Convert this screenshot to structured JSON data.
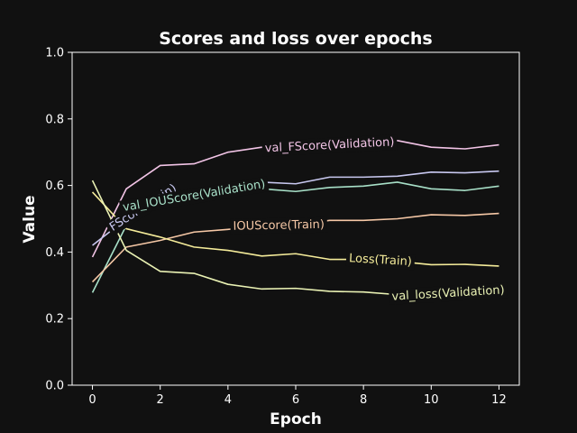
{
  "chart_data": {
    "type": "line",
    "title": "Scores and loss over epochs",
    "xlabel": "Epoch",
    "ylabel": "Value",
    "xlim": [
      -0.6,
      12.6
    ],
    "ylim": [
      0.0,
      1.0
    ],
    "x": [
      0,
      1,
      2,
      3,
      4,
      5,
      6,
      7,
      8,
      9,
      10,
      11,
      12
    ],
    "xticks": [
      0,
      2,
      4,
      6,
      8,
      10,
      12
    ],
    "yticks": [
      0.0,
      0.2,
      0.4,
      0.6,
      0.8,
      1.0
    ],
    "ytick_labels": [
      "0.0",
      "0.2",
      "0.4",
      "0.6",
      "0.8",
      "1.0"
    ],
    "series": [
      {
        "name": "val_FScore(Validation)",
        "color": "#f2c4e6",
        "values": [
          0.385,
          0.59,
          0.66,
          0.665,
          0.7,
          0.715,
          0.71,
          0.72,
          0.725,
          0.735,
          0.715,
          0.71,
          0.722
        ],
        "label_at": 7.0
      },
      {
        "name": "FScore(Train)",
        "color": "#c8c8f0",
        "values": [
          0.42,
          0.5,
          0.565,
          0.585,
          0.6,
          0.61,
          0.605,
          0.625,
          0.625,
          0.628,
          0.64,
          0.638,
          0.643
        ],
        "label_at": 1.5
      },
      {
        "name": "val_IOUScore(Validation)",
        "color": "#a8e0c8",
        "values": [
          0.278,
          0.48,
          0.54,
          0.568,
          0.585,
          0.59,
          0.582,
          0.594,
          0.598,
          0.61,
          0.59,
          0.585,
          0.598
        ],
        "label_at": 3.0
      },
      {
        "name": "IOUScore(Train)",
        "color": "#f6c8a6",
        "values": [
          0.31,
          0.415,
          0.435,
          0.46,
          0.468,
          0.478,
          0.48,
          0.495,
          0.495,
          0.5,
          0.512,
          0.51,
          0.516
        ],
        "label_at": 5.5
      },
      {
        "name": "Loss(Train)",
        "color": "#f5ec9a",
        "values": [
          0.58,
          0.47,
          0.445,
          0.415,
          0.405,
          0.388,
          0.395,
          0.378,
          0.378,
          0.372,
          0.362,
          0.363,
          0.358
        ],
        "label_at": 8.5
      },
      {
        "name": "val_loss(Validation)",
        "color": "#eaf2b4",
        "values": [
          0.615,
          0.405,
          0.342,
          0.336,
          0.303,
          0.289,
          0.291,
          0.282,
          0.28,
          0.272,
          0.272,
          0.278,
          0.282
        ],
        "label_at": 10.5
      }
    ],
    "grid": false,
    "legend": "inline labels"
  }
}
